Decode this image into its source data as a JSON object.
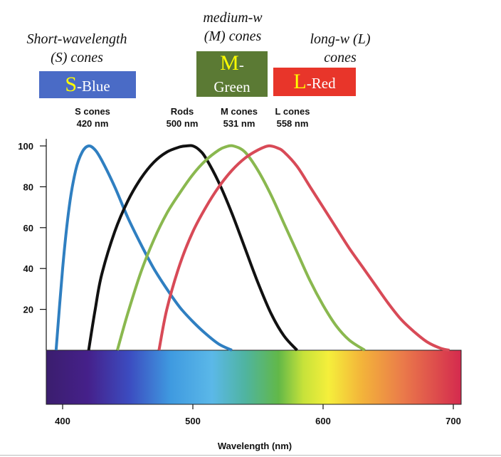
{
  "annotations": {
    "short": {
      "line1": "Short-wavelength",
      "line2": "(S) cones"
    },
    "medium": {
      "line1": "medium-w",
      "line2": "(M) cones"
    },
    "long": {
      "line1": "long-w (L)",
      "line2": "cones"
    }
  },
  "badges": {
    "s": {
      "letter": "S",
      "rest": "-Blue",
      "color": "#4a6bc6"
    },
    "m": {
      "letter": "M",
      "rest_line1": "-",
      "rest_line2": "Green",
      "color": "#5b7a34"
    },
    "l": {
      "letter": "L",
      "rest": "-Red",
      "color": "#e8352a"
    }
  },
  "peak_labels": [
    {
      "name": "S cones",
      "nm": "420 nm"
    },
    {
      "name": "Rods",
      "nm": "500 nm"
    },
    {
      "name": "M cones",
      "nm": "531 nm"
    },
    {
      "name": "L cones",
      "nm": "558 nm"
    }
  ],
  "chart_data": {
    "type": "line",
    "xlabel": "Wavelength (nm)",
    "ylabel": "",
    "xlim": [
      390,
      710
    ],
    "ylim": [
      0,
      100
    ],
    "x_ticks": [
      400,
      500,
      600,
      700
    ],
    "y_ticks": [
      20,
      40,
      60,
      80,
      100
    ],
    "grid": false,
    "series": [
      {
        "name": "S cones",
        "peak": 420,
        "color": "#2f7fc1",
        "x": [
          395,
          400,
          405,
          410,
          415,
          420,
          425,
          430,
          440,
          450,
          460,
          470,
          480,
          490,
          500,
          510,
          520,
          530
        ],
        "y": [
          0,
          40,
          70,
          88,
          97,
          100,
          98,
          93,
          80,
          65,
          52,
          40,
          30,
          21,
          14,
          8,
          3,
          0
        ]
      },
      {
        "name": "Rods",
        "peak": 500,
        "color": "#111111",
        "x": [
          420,
          425,
          430,
          440,
          450,
          460,
          470,
          480,
          490,
          495,
          500,
          505,
          510,
          520,
          530,
          540,
          550,
          560,
          570,
          580
        ],
        "y": [
          0,
          20,
          37,
          58,
          73,
          84,
          92,
          97,
          99.5,
          100,
          100,
          98,
          94,
          82,
          67,
          50,
          33,
          18,
          7,
          0
        ]
      },
      {
        "name": "M cones",
        "peak": 531,
        "color": "#8ab84f",
        "x": [
          442,
          450,
          460,
          470,
          480,
          490,
          500,
          510,
          520,
          525,
          531,
          540,
          550,
          560,
          570,
          580,
          590,
          600,
          610,
          620,
          632
        ],
        "y": [
          0,
          18,
          38,
          54,
          67,
          77,
          86,
          93,
          98,
          99.5,
          100,
          97,
          88,
          76,
          62,
          48,
          34,
          22,
          12,
          5,
          0
        ]
      },
      {
        "name": "L cones",
        "peak": 558,
        "color": "#d84a57",
        "x": [
          474,
          480,
          490,
          500,
          510,
          520,
          530,
          540,
          550,
          558,
          565,
          570,
          580,
          590,
          600,
          610,
          620,
          630,
          640,
          650,
          660,
          670,
          680,
          690,
          697
        ],
        "y": [
          0,
          20,
          42,
          58,
          70,
          80,
          88,
          94,
          98,
          100,
          99,
          97,
          90,
          80,
          70,
          60,
          50,
          41,
          32,
          23,
          15,
          9,
          4,
          1,
          0
        ]
      }
    ],
    "spectrum_band": {
      "from": 390,
      "to": 710
    }
  }
}
